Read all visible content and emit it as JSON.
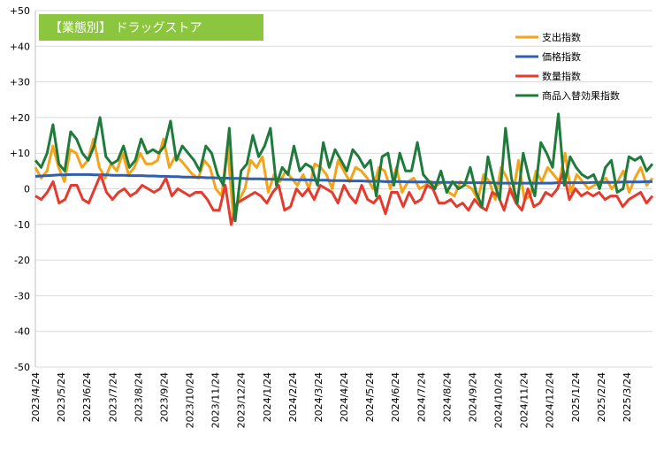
{
  "chart_data": {
    "type": "line",
    "title": "【業態別】 ドラッグストア",
    "title_bg_color": "#8cc63f",
    "ylim": [
      -50,
      50
    ],
    "ystep": 10,
    "y_tick_labels": [
      "+50",
      "+40",
      "+30",
      "+20",
      "+10",
      "0",
      "-10",
      "-20",
      "-30",
      "-40",
      "-50"
    ],
    "x_tick_labels": [
      "2023/4/24",
      "2023/5/24",
      "2023/6/24",
      "2023/7/24",
      "2023/8/24",
      "2023/9/24",
      "2023/10/24",
      "2023/11/24",
      "2023/12/24",
      "2024/1/24",
      "2024/2/24",
      "2024/3/24",
      "2024/4/24",
      "2024/5/24",
      "2024/6/24",
      "2024/7/24",
      "2024/8/24",
      "2024/9/24",
      "2024/10/24",
      "2024/11/24",
      "2024/12/24",
      "2025/1/24",
      "2025/2/24",
      "2025/3/24"
    ],
    "grid": true,
    "legend_position": "top-right",
    "series": [
      {
        "name": "支出指数",
        "color": "#f5a31a",
        "values": [
          6,
          3,
          5,
          12,
          6,
          2,
          11,
          10,
          6,
          8,
          14,
          6,
          3,
          7,
          5,
          10,
          4,
          6,
          10,
          7,
          7,
          8,
          14,
          6,
          9,
          8,
          6,
          4,
          3,
          8,
          6,
          0,
          -2,
          12,
          -8,
          -3,
          0,
          8,
          6,
          9,
          -1,
          4,
          2,
          5,
          3,
          1,
          4,
          0,
          7,
          6,
          4,
          0,
          8,
          5,
          2,
          6,
          5,
          3,
          0,
          6,
          5,
          0,
          6,
          -1,
          2,
          3,
          0,
          1,
          2,
          1,
          2,
          -1,
          -2,
          2,
          1,
          0,
          -3,
          4,
          2,
          -3,
          6,
          3,
          -2,
          8,
          -3,
          -2,
          5,
          2,
          6,
          4,
          2,
          10,
          -1,
          4,
          2,
          0,
          1,
          2,
          3,
          0,
          2,
          5,
          -1,
          3,
          6,
          1,
          3
        ]
      },
      {
        "name": "価格指数",
        "color": "#2e5fb0",
        "values": [
          3.5,
          3.6,
          3.7,
          3.8,
          3.9,
          3.9,
          4.0,
          4.0,
          4.0,
          4.0,
          3.9,
          3.9,
          3.9,
          3.8,
          3.8,
          3.8,
          3.7,
          3.7,
          3.7,
          3.6,
          3.6,
          3.5,
          3.5,
          3.4,
          3.4,
          3.3,
          3.3,
          3.2,
          3.2,
          3.1,
          3.1,
          3.0,
          3.0,
          2.9,
          2.9,
          2.9,
          2.8,
          2.8,
          2.8,
          2.7,
          2.7,
          2.7,
          2.6,
          2.6,
          2.5,
          2.5,
          2.5,
          2.4,
          2.4,
          2.4,
          2.3,
          2.3,
          2.3,
          2.2,
          2.2,
          2.2,
          2.1,
          2.1,
          2.1,
          2.0,
          2.0,
          2.0,
          2.0,
          1.9,
          1.9,
          1.9,
          1.9,
          1.8,
          1.8,
          1.8,
          1.8,
          1.8,
          1.7,
          1.7,
          1.7,
          1.7,
          1.7,
          1.7,
          1.6,
          1.6,
          1.6,
          1.6,
          1.6,
          1.6,
          1.6,
          1.6,
          1.6,
          1.6,
          1.7,
          1.7,
          1.7,
          1.7,
          1.7,
          1.7,
          1.8,
          1.8,
          1.8,
          1.8,
          1.8,
          1.9,
          1.9,
          1.9,
          1.9,
          2.0,
          2.0
        ]
      },
      {
        "name": "数量指数",
        "color": "#e53a2e",
        "values": [
          -2,
          -3,
          -1,
          2,
          -4,
          -3,
          1,
          1,
          -3,
          -4,
          0,
          4,
          -1,
          -3,
          -1,
          0,
          -2,
          -1,
          1,
          0,
          -1,
          0,
          3,
          -2,
          0,
          -1,
          -2,
          -1,
          -1,
          -3,
          -6,
          -6,
          1,
          -10,
          -4,
          -3,
          -2,
          -1,
          -2,
          -4,
          -1,
          1,
          -6,
          -5,
          0,
          -2,
          0,
          -3,
          1,
          0,
          -1,
          -4,
          1,
          -2,
          -4,
          1,
          -3,
          -4,
          -2,
          -7,
          -1,
          -1,
          -5,
          -1,
          -4,
          -3,
          1,
          0,
          -4,
          -4,
          -3,
          -5,
          -4,
          -6,
          -3,
          -5,
          -6,
          -1,
          -2,
          -6,
          0,
          -4,
          -6,
          0,
          -5,
          -4,
          -1,
          -2,
          0,
          5,
          -3,
          0,
          -2,
          -1,
          -2,
          -1,
          -3,
          -2,
          -2,
          -5,
          -3,
          -2,
          -1,
          -4,
          -2
        ]
      },
      {
        "name": "商品入替効果指数",
        "color": "#1e7b3c",
        "values": [
          8,
          6,
          10,
          18,
          7,
          5,
          16,
          14,
          10,
          8,
          12,
          20,
          9,
          7,
          8,
          12,
          6,
          8,
          14,
          10,
          11,
          10,
          12,
          19,
          8,
          12,
          10,
          8,
          5,
          12,
          10,
          4,
          1,
          17,
          -9,
          5,
          7,
          15,
          9,
          12,
          17,
          1,
          6,
          4,
          12,
          5,
          7,
          6,
          1,
          13,
          6,
          11,
          8,
          5,
          11,
          9,
          6,
          8,
          -2,
          9,
          10,
          1,
          10,
          5,
          5,
          13,
          4,
          2,
          0,
          5,
          -1,
          2,
          0,
          1,
          6,
          -1,
          -5,
          9,
          2,
          -3,
          17,
          3,
          -4,
          10,
          3,
          -2,
          13,
          10,
          6,
          21,
          1,
          9,
          6,
          4,
          3,
          4,
          0,
          6,
          8,
          -1,
          0,
          9,
          8,
          9,
          5,
          7
        ]
      }
    ]
  }
}
